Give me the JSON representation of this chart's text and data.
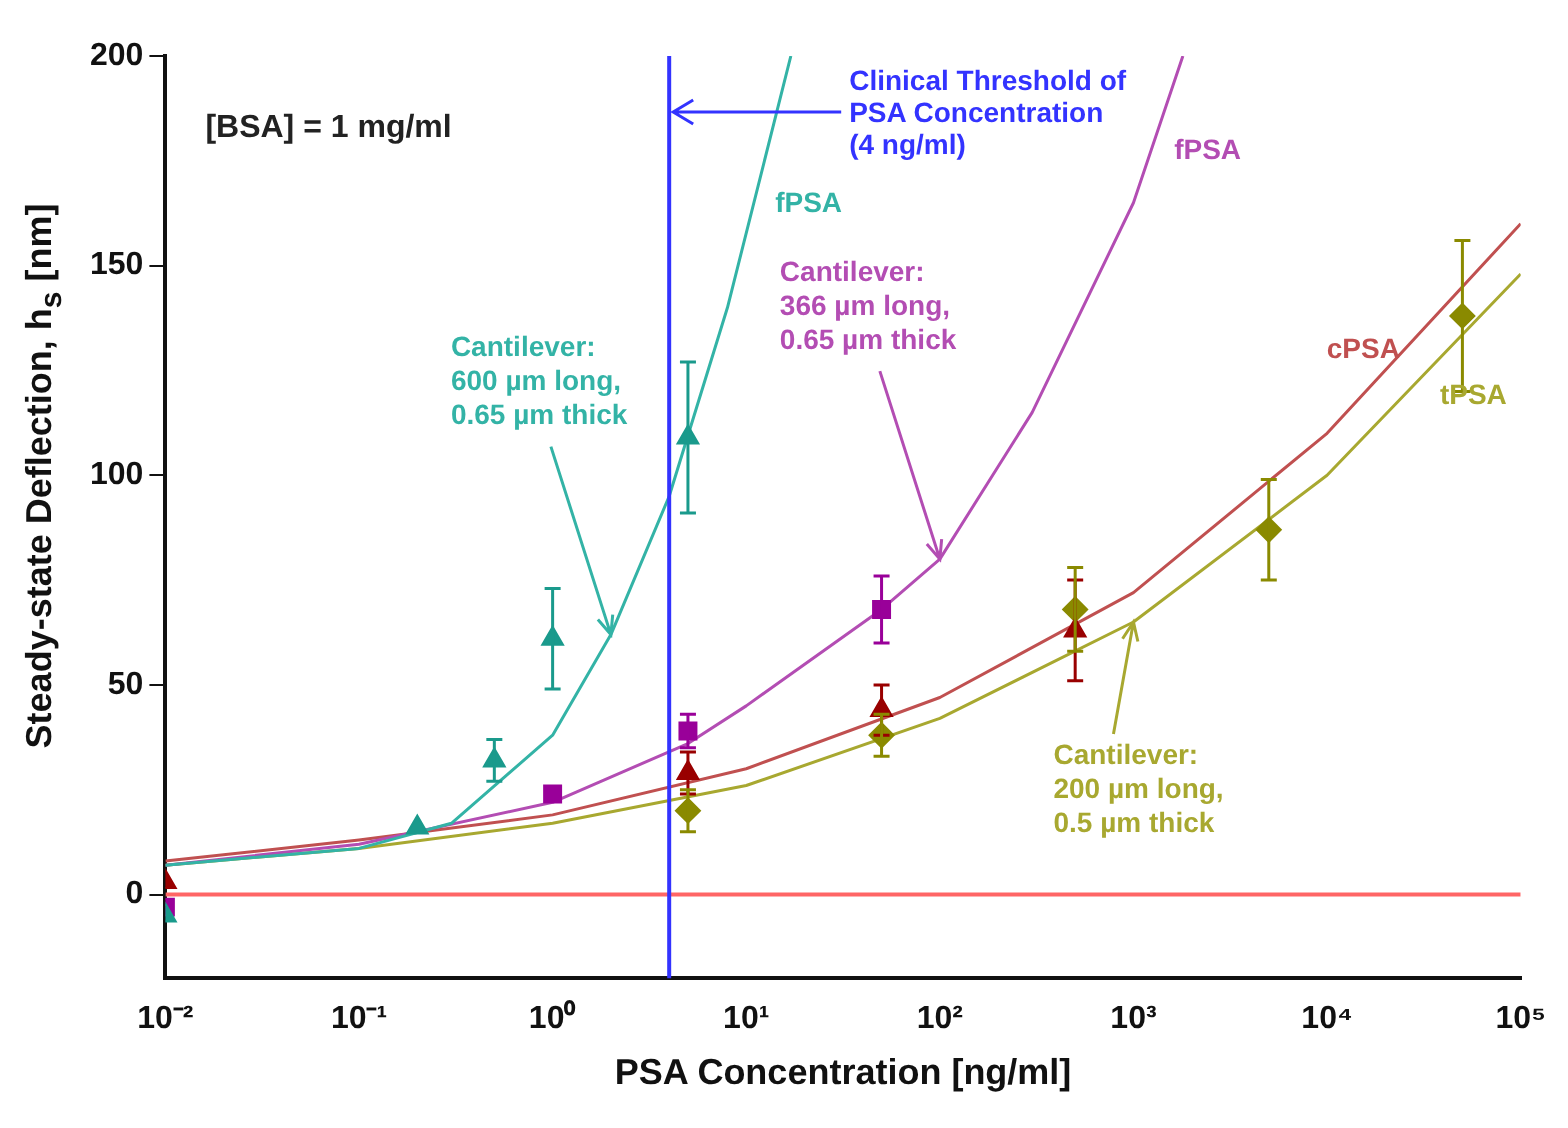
{
  "chart_data": {
    "type": "scatter",
    "xlabel": "PSA Concentration [ng/ml]",
    "ylabel": "Steady-state Deflection, h$_{s}$ [nm]",
    "log": "x",
    "grid": false,
    "legend": false,
    "xlim": [
      0.01,
      100000
    ],
    "ylim": [
      -20,
      200
    ],
    "xticks": [
      {
        "value": 0.01,
        "label": "10⁻²"
      },
      {
        "value": 0.1,
        "label": "10⁻¹"
      },
      {
        "value": 1,
        "label": "10⁰"
      },
      {
        "value": 10,
        "label": "10¹"
      },
      {
        "value": 100,
        "label": "10²"
      },
      {
        "value": 1000,
        "label": "10³"
      },
      {
        "value": 10000,
        "label": "10⁴"
      },
      {
        "value": 100000,
        "label": "10⁵"
      }
    ],
    "yticks": [
      0,
      50,
      100,
      150,
      200
    ],
    "ref_lines": [
      {
        "axis": "y",
        "value": 0,
        "color": "#ff6666"
      },
      {
        "axis": "x",
        "value": 4,
        "label": "Clinical Threshold of\nPSA Concentration\n(4 ng/ml)",
        "color": "#3333ff"
      }
    ],
    "annotations": [
      "[BSA] = 1 mg/ml",
      {
        "text": "Cantilever:\n600 µm long,\n0.65 µm thick",
        "x": 2,
        "y": 62
      },
      {
        "text": "Cantilever:\n366 µm long,\n0.65 µm thick",
        "x": 100,
        "y": 80
      },
      {
        "text": "Cantilever:\n200 µm long,\n0.5 µm thick",
        "x": 1000,
        "y": 65
      }
    ],
    "series": [
      {
        "marker": "triangle",
        "color": "#1a9a8c",
        "x": [
          0.01,
          0.2,
          0.5,
          1,
          5
        ],
        "values": [
          -5,
          16,
          32,
          61,
          109
        ],
        "errors": [
          null,
          null,
          5,
          12,
          18
        ]
      },
      {
        "marker": "square",
        "color": "#990099",
        "x": [
          0.01,
          1,
          5,
          50
        ],
        "values": [
          -3,
          24,
          39,
          68
        ],
        "errors": [
          null,
          null,
          4,
          8
        ]
      },
      {
        "marker": "triangle",
        "color": "#990000",
        "x": [
          0.01,
          5,
          50,
          500
        ],
        "values": [
          3,
          29,
          44,
          63
        ],
        "errors": [
          null,
          5,
          6,
          12
        ]
      },
      {
        "marker": "diamond",
        "color": "#8a8a00",
        "x": [
          5,
          50,
          500,
          5000,
          50000
        ],
        "values": [
          20,
          38,
          68,
          87,
          138
        ],
        "errors": [
          5,
          5,
          10,
          12,
          18
        ]
      },
      {
        "type": "line",
        "name": "fPSA",
        "marker": "none",
        "color": "#33b3a6",
        "x": [
          0.01,
          0.1,
          0.3,
          1,
          2,
          4,
          8,
          17
        ],
        "values": [
          7,
          11,
          17,
          38,
          62,
          95,
          140,
          200
        ]
      },
      {
        "type": "line",
        "name": "fPSA",
        "marker": "none",
        "color": "#b34db3",
        "x": [
          0.01,
          0.1,
          1,
          5,
          10,
          50,
          100,
          300,
          1000,
          1800
        ],
        "values": [
          7,
          12,
          22,
          36,
          45,
          68,
          80,
          115,
          165,
          200
        ]
      },
      {
        "type": "line",
        "name": "cPSA",
        "marker": "none",
        "color": "#c05050",
        "x": [
          0.01,
          0.1,
          1,
          10,
          100,
          1000,
          10000,
          100000
        ],
        "values": [
          8,
          13,
          19,
          30,
          47,
          72,
          110,
          160
        ]
      },
      {
        "type": "line",
        "name": "tPSA",
        "marker": "none",
        "color": "#a8a830",
        "x": [
          0.01,
          0.1,
          1,
          10,
          100,
          1000,
          10000,
          100000
        ],
        "values": [
          7,
          11,
          17,
          26,
          42,
          65,
          100,
          148
        ]
      }
    ]
  }
}
